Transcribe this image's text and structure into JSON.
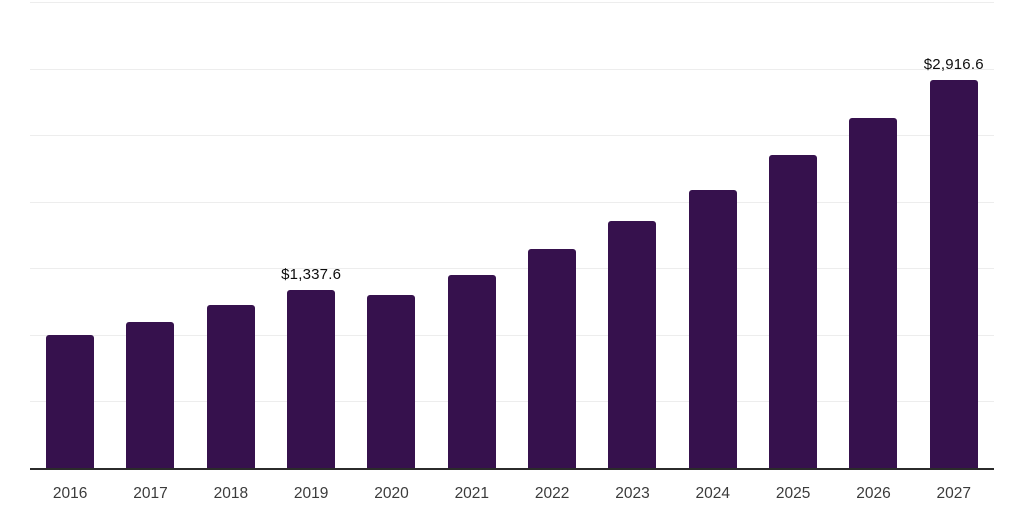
{
  "chart_data": {
    "type": "bar",
    "title": "",
    "xlabel": "",
    "ylabel": "",
    "categories": [
      "2016",
      "2017",
      "2018",
      "2019",
      "2020",
      "2021",
      "2022",
      "2023",
      "2024",
      "2025",
      "2026",
      "2027"
    ],
    "values": [
      1000,
      1100,
      1225,
      1337.6,
      1300,
      1450,
      1645,
      1855,
      2085,
      2350,
      2630,
      2916.6
    ],
    "data_labels": [
      "",
      "",
      "",
      "$1,337.6",
      "",
      "",
      "",
      "",
      "",
      "",
      "",
      "$2,916.6"
    ],
    "ylim": [
      0,
      3500
    ],
    "gridline_step": 500,
    "grid": true,
    "legend": false,
    "y_tick_labels_visible": false,
    "colors": {
      "bar": "#36114d",
      "gridline": "#ededed",
      "axis_line": "#2b2b2b",
      "x_tick_label": "#3b3b3b",
      "data_label": "#0d0d0d",
      "background": "#ffffff"
    }
  }
}
